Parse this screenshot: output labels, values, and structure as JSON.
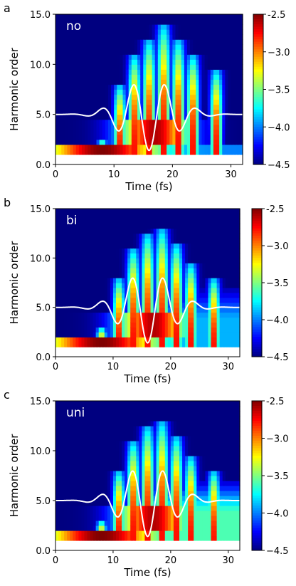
{
  "chart_data": [
    {
      "type": "heatmap",
      "panel_letter": "a",
      "inset_label": "no",
      "xlabel": "Time (fs)",
      "ylabel": "Harmonic order",
      "xlim": [
        0,
        32
      ],
      "ylim": [
        0,
        15
      ],
      "x_ticks": [
        "0",
        "10",
        "20",
        "30"
      ],
      "y_ticks": [
        "0.0",
        "5.0",
        "10.0",
        "15.0"
      ],
      "colorbar": {
        "range": [
          -4.5,
          -2.5
        ],
        "ticks": [
          "-2.5",
          "−3.0",
          "−3.5",
          "−4.0",
          "−4.5"
        ],
        "colormap": "jet"
      },
      "continuum_level": -4.5,
      "harmonic_peak_times_fs": [
        8,
        11,
        13.5,
        16,
        18.5,
        21,
        23.5,
        27.5
      ],
      "peak_heights": [
        2.5,
        8,
        11,
        12.5,
        14,
        12.5,
        11,
        9.5
      ],
      "field_trace": {
        "color": "#ffffff",
        "baseline_order": 5.0,
        "peak_amplitude": 3.6,
        "center_fs": 16,
        "period_fs": 5.4,
        "width_fs": 6
      }
    },
    {
      "type": "heatmap",
      "panel_letter": "b",
      "inset_label": "bi",
      "xlabel": "Time (fs)",
      "ylabel": "Harmonic order",
      "xlim": [
        0,
        32
      ],
      "ylim": [
        0,
        15
      ],
      "x_ticks": [
        "0",
        "10",
        "20",
        "30"
      ],
      "y_ticks": [
        "0.0",
        "5.0",
        "10.0",
        "15.0"
      ],
      "colorbar": {
        "range": [
          -4.5,
          -2.5
        ],
        "ticks": [
          "-2.5",
          "−3.0",
          "−3.5",
          "−4.0",
          "−4.5"
        ],
        "colormap": "jet"
      },
      "continuum_level": -3.9,
      "harmonic_peak_times_fs": [
        8,
        11,
        13.5,
        16,
        18.5,
        21,
        23.5,
        27.5
      ],
      "peak_heights": [
        3,
        8,
        11,
        12.5,
        13,
        11.5,
        9.5,
        8
      ],
      "field_trace": {
        "color": "#ffffff",
        "baseline_order": 5.0,
        "peak_amplitude": 3.6,
        "center_fs": 16,
        "period_fs": 5.4,
        "width_fs": 6
      }
    },
    {
      "type": "heatmap",
      "panel_letter": "c",
      "inset_label": "uni",
      "xlabel": "Time (fs)",
      "ylabel": "Harmonic order",
      "xlim": [
        0,
        32
      ],
      "ylim": [
        0,
        15
      ],
      "x_ticks": [
        "0",
        "10",
        "20",
        "30"
      ],
      "y_ticks": [
        "0.0",
        "5.0",
        "10.0",
        "15.0"
      ],
      "colorbar": {
        "range": [
          -4.5,
          -2.5
        ],
        "ticks": [
          "-2.5",
          "−3.0",
          "−3.5",
          "−4.0",
          "−4.5"
        ],
        "colormap": "jet"
      },
      "continuum_level": -3.6,
      "harmonic_peak_times_fs": [
        8,
        11,
        13.5,
        16,
        18.5,
        21,
        23.5,
        27.5
      ],
      "peak_heights": [
        3,
        8,
        11,
        12.5,
        13,
        11.5,
        9.5,
        8
      ],
      "field_trace": {
        "color": "#ffffff",
        "baseline_order": 5.0,
        "peak_amplitude": 3.6,
        "center_fs": 16,
        "period_fs": 5.4,
        "width_fs": 6
      }
    }
  ]
}
